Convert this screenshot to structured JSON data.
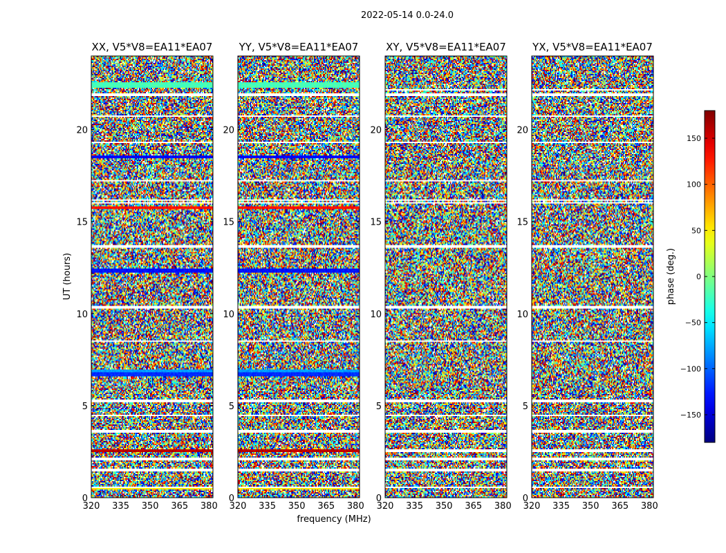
{
  "chart_data": {
    "type": "heatmap",
    "suptitle": "2022-05-14 0.0-24.0",
    "xlabel": "frequency (MHz)",
    "ylabel": "UT (hours)",
    "xlim": [
      320,
      382
    ],
    "ylim": [
      0,
      24
    ],
    "xticks": [
      320,
      335,
      350,
      365,
      380
    ],
    "yticks": [
      0,
      5,
      10,
      15,
      20
    ],
    "xtick_labels": [
      "320",
      "335",
      "350",
      "365",
      "380"
    ],
    "ytick_labels": [
      "0",
      "5",
      "10",
      "15",
      "20"
    ],
    "colorbar": {
      "label": "phase (deg.)",
      "vmin": -180,
      "vmax": 180,
      "ticks": [
        150,
        100,
        50,
        0,
        -50,
        -100,
        -150
      ],
      "tick_labels": [
        "150",
        "100",
        "50",
        "0",
        "−50",
        "−100",
        "−150"
      ],
      "colormap": "jet"
    },
    "panels": [
      {
        "title": "XX, V5*V8=EA11*EA07",
        "show_ylabel": true,
        "show_xlabel": false,
        "flagged_ut": [
          0.55,
          1.5,
          2.1,
          3.6,
          4.45,
          5.25,
          8.5,
          10.35,
          13.65,
          16.0,
          16.15,
          17.2,
          19.3,
          20.75,
          21.9
        ],
        "coherent_bands": [
          {
            "ut_start": 0.45,
            "ut_end": 0.6,
            "phase": 50
          },
          {
            "ut_start": 2.5,
            "ut_end": 2.65,
            "phase": 160
          },
          {
            "ut_start": 6.6,
            "ut_end": 6.8,
            "phase": -120
          },
          {
            "ut_start": 6.8,
            "ut_end": 6.95,
            "phase": -80
          },
          {
            "ut_start": 12.2,
            "ut_end": 12.45,
            "phase": -130
          },
          {
            "ut_start": 15.7,
            "ut_end": 15.85,
            "phase": 130
          },
          {
            "ut_start": 18.45,
            "ut_end": 18.6,
            "phase": -135
          },
          {
            "ut_start": 21.9,
            "ut_end": 22.0,
            "phase": -110
          },
          {
            "ut_start": 22.3,
            "ut_end": 22.6,
            "phase": -20
          }
        ]
      },
      {
        "title": "YY, V5*V8=EA11*EA07",
        "show_ylabel": false,
        "show_xlabel": true,
        "flagged_ut": [
          0.55,
          1.5,
          2.1,
          3.6,
          4.45,
          5.25,
          8.5,
          10.35,
          13.65,
          16.0,
          16.15,
          17.2,
          19.3,
          20.75,
          21.9
        ],
        "coherent_bands": [
          {
            "ut_start": 0.45,
            "ut_end": 0.6,
            "phase": 50
          },
          {
            "ut_start": 2.5,
            "ut_end": 2.65,
            "phase": 160
          },
          {
            "ut_start": 6.6,
            "ut_end": 6.8,
            "phase": -120
          },
          {
            "ut_start": 6.8,
            "ut_end": 6.95,
            "phase": -80
          },
          {
            "ut_start": 12.2,
            "ut_end": 12.45,
            "phase": -130
          },
          {
            "ut_start": 15.7,
            "ut_end": 15.85,
            "phase": 130
          },
          {
            "ut_start": 18.45,
            "ut_end": 18.6,
            "phase": -135
          },
          {
            "ut_start": 21.9,
            "ut_end": 22.0,
            "phase": -110
          },
          {
            "ut_start": 22.3,
            "ut_end": 22.6,
            "phase": -20
          }
        ]
      },
      {
        "title": "XY, V5*V8=EA11*EA07",
        "show_ylabel": false,
        "show_xlabel": false,
        "flagged_ut": [
          0.55,
          1.5,
          2.1,
          2.55,
          3.6,
          4.45,
          5.25,
          8.5,
          10.35,
          13.65,
          16.0,
          16.15,
          17.2,
          19.3,
          20.75,
          21.9,
          22.15
        ],
        "coherent_bands": [
          {
            "ut_start": 2.5,
            "ut_end": 2.65,
            "phase": 20
          }
        ]
      },
      {
        "title": "YX, V5*V8=EA11*EA07",
        "show_ylabel": false,
        "show_xlabel": false,
        "flagged_ut": [
          0.55,
          1.5,
          2.1,
          2.55,
          3.6,
          4.45,
          5.25,
          8.5,
          10.35,
          13.65,
          16.0,
          16.15,
          17.2,
          19.3,
          20.75,
          21.9,
          22.15
        ],
        "coherent_bands": [
          {
            "ut_start": 2.5,
            "ut_end": 2.65,
            "phase": 20
          }
        ]
      }
    ]
  }
}
